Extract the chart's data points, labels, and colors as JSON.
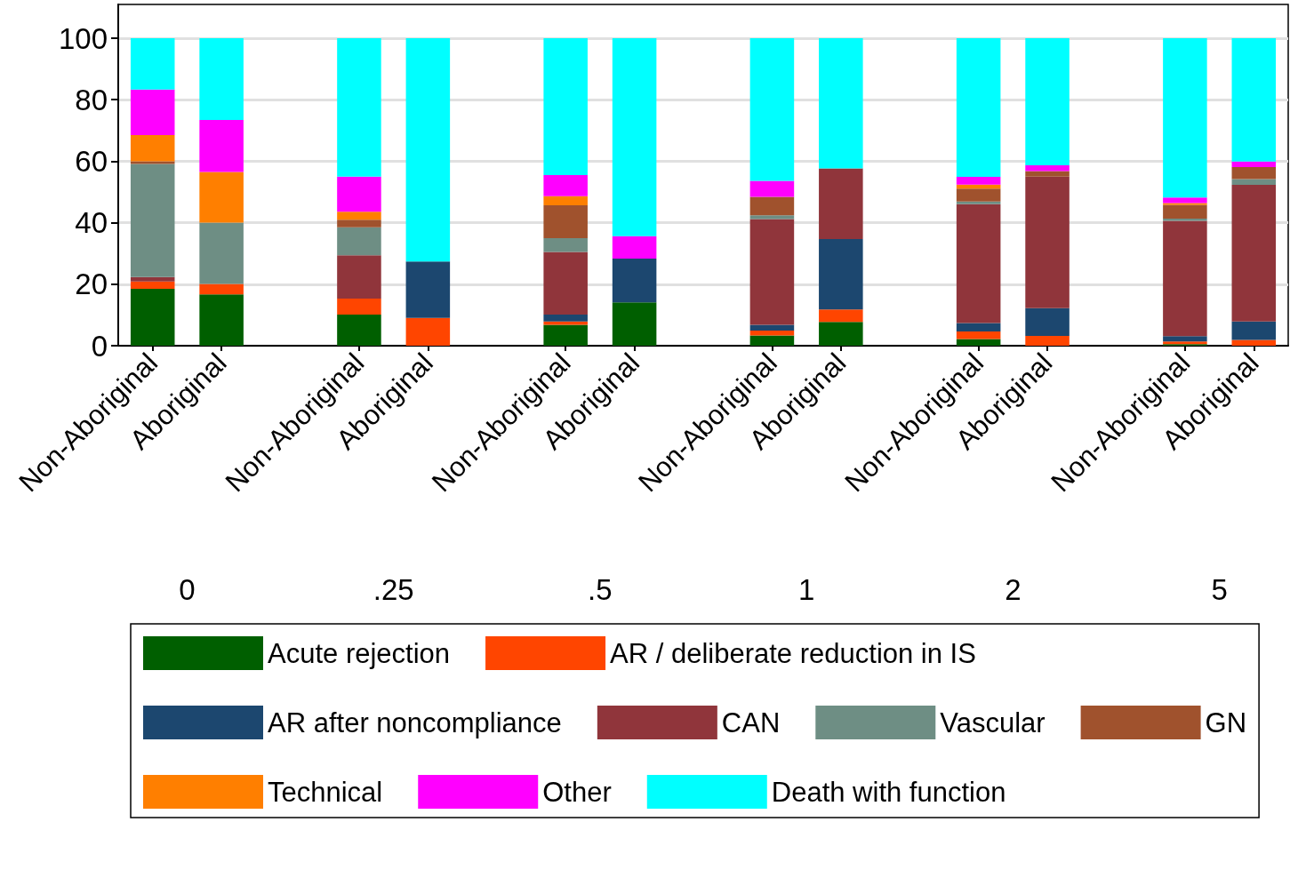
{
  "chart_data": {
    "type": "bar",
    "stacked": true,
    "categories": [
      "Non-Aboriginal",
      "Aboriginal",
      null,
      "Non-Aboriginal",
      "Aboriginal",
      null,
      "Non-Aboriginal",
      "Aboriginal",
      null,
      "Non-Aboriginal",
      "Aboriginal",
      null,
      "Non-Aboriginal",
      "Aboriginal",
      null,
      "Non-Aboriginal",
      "Aboriginal"
    ],
    "series": [
      {
        "name": "Acute rejection",
        "color": "#005f00",
        "values": [
          18.5,
          16.7,
          null,
          10.1,
          0,
          null,
          6.8,
          14.1,
          null,
          3.3,
          7.7,
          null,
          2.2,
          0,
          null,
          0.5,
          0
        ]
      },
      {
        "name": "AR / deliberate reduction in IS",
        "color": "#ff4500",
        "values": [
          2.4,
          3.4,
          null,
          5.2,
          9.0,
          null,
          1.1,
          0,
          null,
          1.6,
          4.1,
          null,
          2.4,
          3.2,
          null,
          0.9,
          1.9
        ]
      },
      {
        "name": "AR after noncompliance",
        "color": "#1c476f",
        "values": [
          0,
          0,
          null,
          0,
          18.4,
          null,
          2.2,
          14.2,
          null,
          1.9,
          22.9,
          null,
          2.8,
          9.0,
          null,
          1.7,
          6.0
        ]
      },
      {
        "name": "CAN",
        "color": "#90353b",
        "values": [
          1.4,
          0,
          null,
          14.1,
          0,
          null,
          20.4,
          0,
          null,
          34.4,
          23.0,
          null,
          38.6,
          42.8,
          null,
          37.5,
          44.4
        ]
      },
      {
        "name": "Vascular",
        "color": "#6e8e84",
        "values": [
          36.8,
          19.9,
          null,
          9.1,
          0,
          null,
          4.5,
          0,
          null,
          1.2,
          0,
          null,
          0.9,
          0,
          null,
          0.7,
          1.9
        ]
      },
      {
        "name": "GN",
        "color": "#a0522d",
        "values": [
          0.9,
          0,
          null,
          2.5,
          0,
          null,
          10.7,
          0,
          null,
          6.0,
          0,
          null,
          4.2,
          1.8,
          null,
          4.5,
          3.9
        ]
      },
      {
        "name": "Technical",
        "color": "#ff7f00",
        "values": [
          8.5,
          16.5,
          null,
          2.6,
          0,
          null,
          2.9,
          0,
          null,
          0,
          0,
          null,
          1.3,
          0,
          null,
          0.6,
          0
        ]
      },
      {
        "name": "Other",
        "color": "#ff00ff",
        "values": [
          14.8,
          16.9,
          null,
          11.4,
          0,
          null,
          6.9,
          7.3,
          null,
          5.2,
          0,
          null,
          2.5,
          1.9,
          null,
          1.8,
          1.8
        ]
      },
      {
        "name": "Death with function",
        "color": "#00ffff",
        "values": [
          16.7,
          26.6,
          null,
          45.0,
          72.6,
          null,
          44.5,
          64.4,
          null,
          46.4,
          42.3,
          null,
          45.1,
          41.3,
          null,
          51.8,
          40.1
        ]
      }
    ],
    "ylim": [
      0,
      111
    ],
    "yticks": [
      0,
      20,
      40,
      60,
      80,
      100
    ],
    "grid": "y",
    "legend": "bottom",
    "annotations": [
      "0",
      ".25",
      ".5",
      "1",
      "2",
      "5"
    ]
  }
}
